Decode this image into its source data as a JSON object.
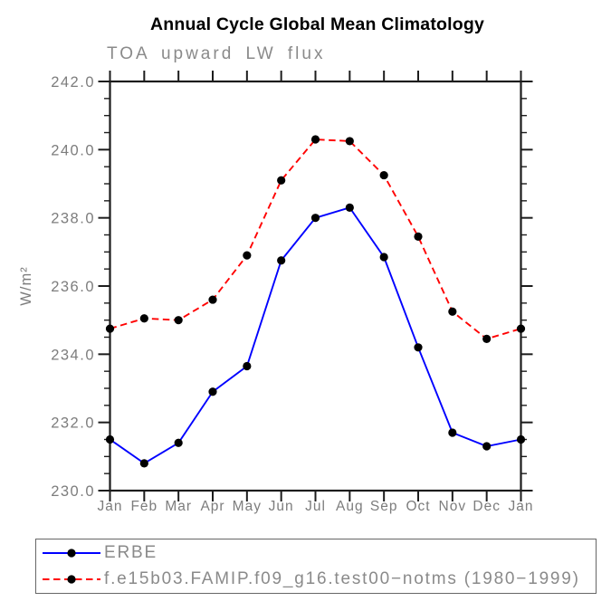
{
  "title": "Annual Cycle Global Mean Climatology",
  "subtitle": "TOA upward LW flux",
  "colors": {
    "axis": "#1c1c1c",
    "gray_text": "#7d7d7d",
    "erbe_line": "#0000ff",
    "model_line": "#ff0000",
    "marker": "#000000",
    "legend_border": "#666666"
  },
  "chart_data": {
    "type": "line",
    "title": "Annual Cycle Global Mean Climatology",
    "subtitle": "TOA upward LW flux",
    "xlabel": "",
    "ylabel": "W/m²",
    "categories": [
      "Jan",
      "Feb",
      "Mar",
      "Apr",
      "May",
      "Jun",
      "Jul",
      "Aug",
      "Sep",
      "Oct",
      "Nov",
      "Dec",
      "Jan"
    ],
    "ylim": [
      230.0,
      242.0
    ],
    "ytick_step": 2.0,
    "yminor_step": 0.5,
    "ytick_labels": [
      "230.0",
      "232.0",
      "234.0",
      "236.0",
      "238.0",
      "240.0",
      "242.0"
    ],
    "grid": false,
    "legend_position": "bottom",
    "series": [
      {
        "name": "ERBE",
        "color": "#0000ff",
        "style": "solid",
        "marker": "circle",
        "marker_color": "#000000",
        "values": [
          231.5,
          230.8,
          231.4,
          232.9,
          233.65,
          236.75,
          238.0,
          238.3,
          236.85,
          234.2,
          231.7,
          231.3,
          231.5
        ]
      },
      {
        "name": "f.e15b03.FAMIP.f09_g16.test00−notms (1980−1999)",
        "color": "#ff0000",
        "style": "dashed",
        "marker": "circle",
        "marker_color": "#000000",
        "values": [
          234.75,
          235.05,
          235.0,
          235.6,
          236.9,
          239.1,
          240.3,
          240.25,
          239.25,
          237.45,
          235.25,
          234.45,
          234.75
        ]
      }
    ]
  }
}
